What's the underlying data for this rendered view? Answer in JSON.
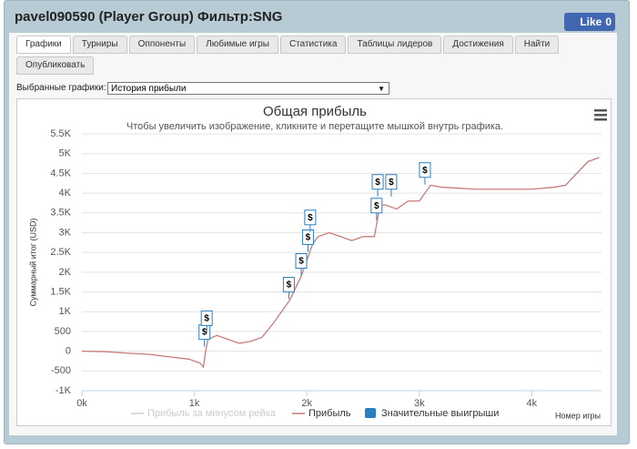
{
  "header": {
    "title": "pavel090590 (Player Group) Фильтр:SNG",
    "like_label": "Like",
    "like_count": "0"
  },
  "tabs": [
    "Графики",
    "Турниры",
    "Оппоненты",
    "Любимые игры",
    "Статистика",
    "Таблицы лидеров",
    "Достижения",
    "Найти",
    "Опубликовать"
  ],
  "active_tab": 0,
  "selector": {
    "label": "Выбранные графики:",
    "value": "История прибыли"
  },
  "chart_data": {
    "type": "line",
    "title": "Общая прибыль",
    "subtitle": "Чтобы увеличить изображение, кликните и перетащите мышкой внутрь графика.",
    "ylabel": "Суммарный итог (USD)",
    "xlabel": "Номер игры",
    "marker_symbol": "$",
    "xlim": [
      0,
      4620
    ],
    "ylim": [
      -1000,
      5500
    ],
    "xticks": [
      {
        "value": 0,
        "label": "0k"
      },
      {
        "value": 1000,
        "label": "1k"
      },
      {
        "value": 2000,
        "label": "2k"
      },
      {
        "value": 3000,
        "label": "3k"
      },
      {
        "value": 4000,
        "label": "4k"
      }
    ],
    "yticks": [
      {
        "value": -1000,
        "label": "-1K"
      },
      -500,
      0,
      500,
      {
        "value": 1000,
        "label": "1K"
      },
      {
        "value": 1500,
        "label": "1.5K"
      },
      {
        "value": 2000,
        "label": "2K"
      },
      {
        "value": 2500,
        "label": "2.5K"
      },
      {
        "value": 3000,
        "label": "3K"
      },
      {
        "value": 3500,
        "label": "3.5K"
      },
      {
        "value": 4000,
        "label": "4K"
      },
      {
        "value": 4500,
        "label": "4.5K"
      },
      {
        "value": 5000,
        "label": "5K"
      },
      {
        "value": 5500,
        "label": "5.5K"
      }
    ],
    "grid": true,
    "series": [
      {
        "name": "Прибыль за минусом рейка",
        "color": "#cccccc",
        "visible": false
      },
      {
        "name": "Прибыль",
        "color": "#c97b7b",
        "x": [
          0,
          200,
          400,
          600,
          800,
          950,
          1050,
          1080,
          1100,
          1120,
          1200,
          1300,
          1400,
          1500,
          1600,
          1700,
          1800,
          1850,
          1900,
          1950,
          2000,
          2050,
          2100,
          2200,
          2300,
          2400,
          2500,
          2600,
          2620,
          2650,
          2700,
          2800,
          2900,
          3000,
          3050,
          3100,
          3200,
          3500,
          4000,
          4200,
          4300,
          4400,
          4500,
          4600
        ],
        "values": [
          0,
          -10,
          -50,
          -80,
          -150,
          -200,
          -300,
          -400,
          0,
          300,
          400,
          300,
          200,
          250,
          350,
          700,
          1100,
          1300,
          1600,
          1900,
          2300,
          2700,
          2900,
          3000,
          2900,
          2800,
          2900,
          2900,
          3200,
          3700,
          3700,
          3600,
          3800,
          3800,
          4000,
          4200,
          4150,
          4100,
          4100,
          4150,
          4200,
          4500,
          4800,
          4900
        ]
      },
      {
        "name": "Значительные выигрыши",
        "color": "#2a7fc1",
        "x": [
          1090,
          1110,
          1840,
          1950,
          2010,
          2030,
          2620,
          2630,
          2750,
          3050
        ],
        "values": [
          300,
          650,
          1500,
          2100,
          2700,
          3200,
          3500,
          4100,
          4100,
          4400
        ]
      }
    ]
  }
}
